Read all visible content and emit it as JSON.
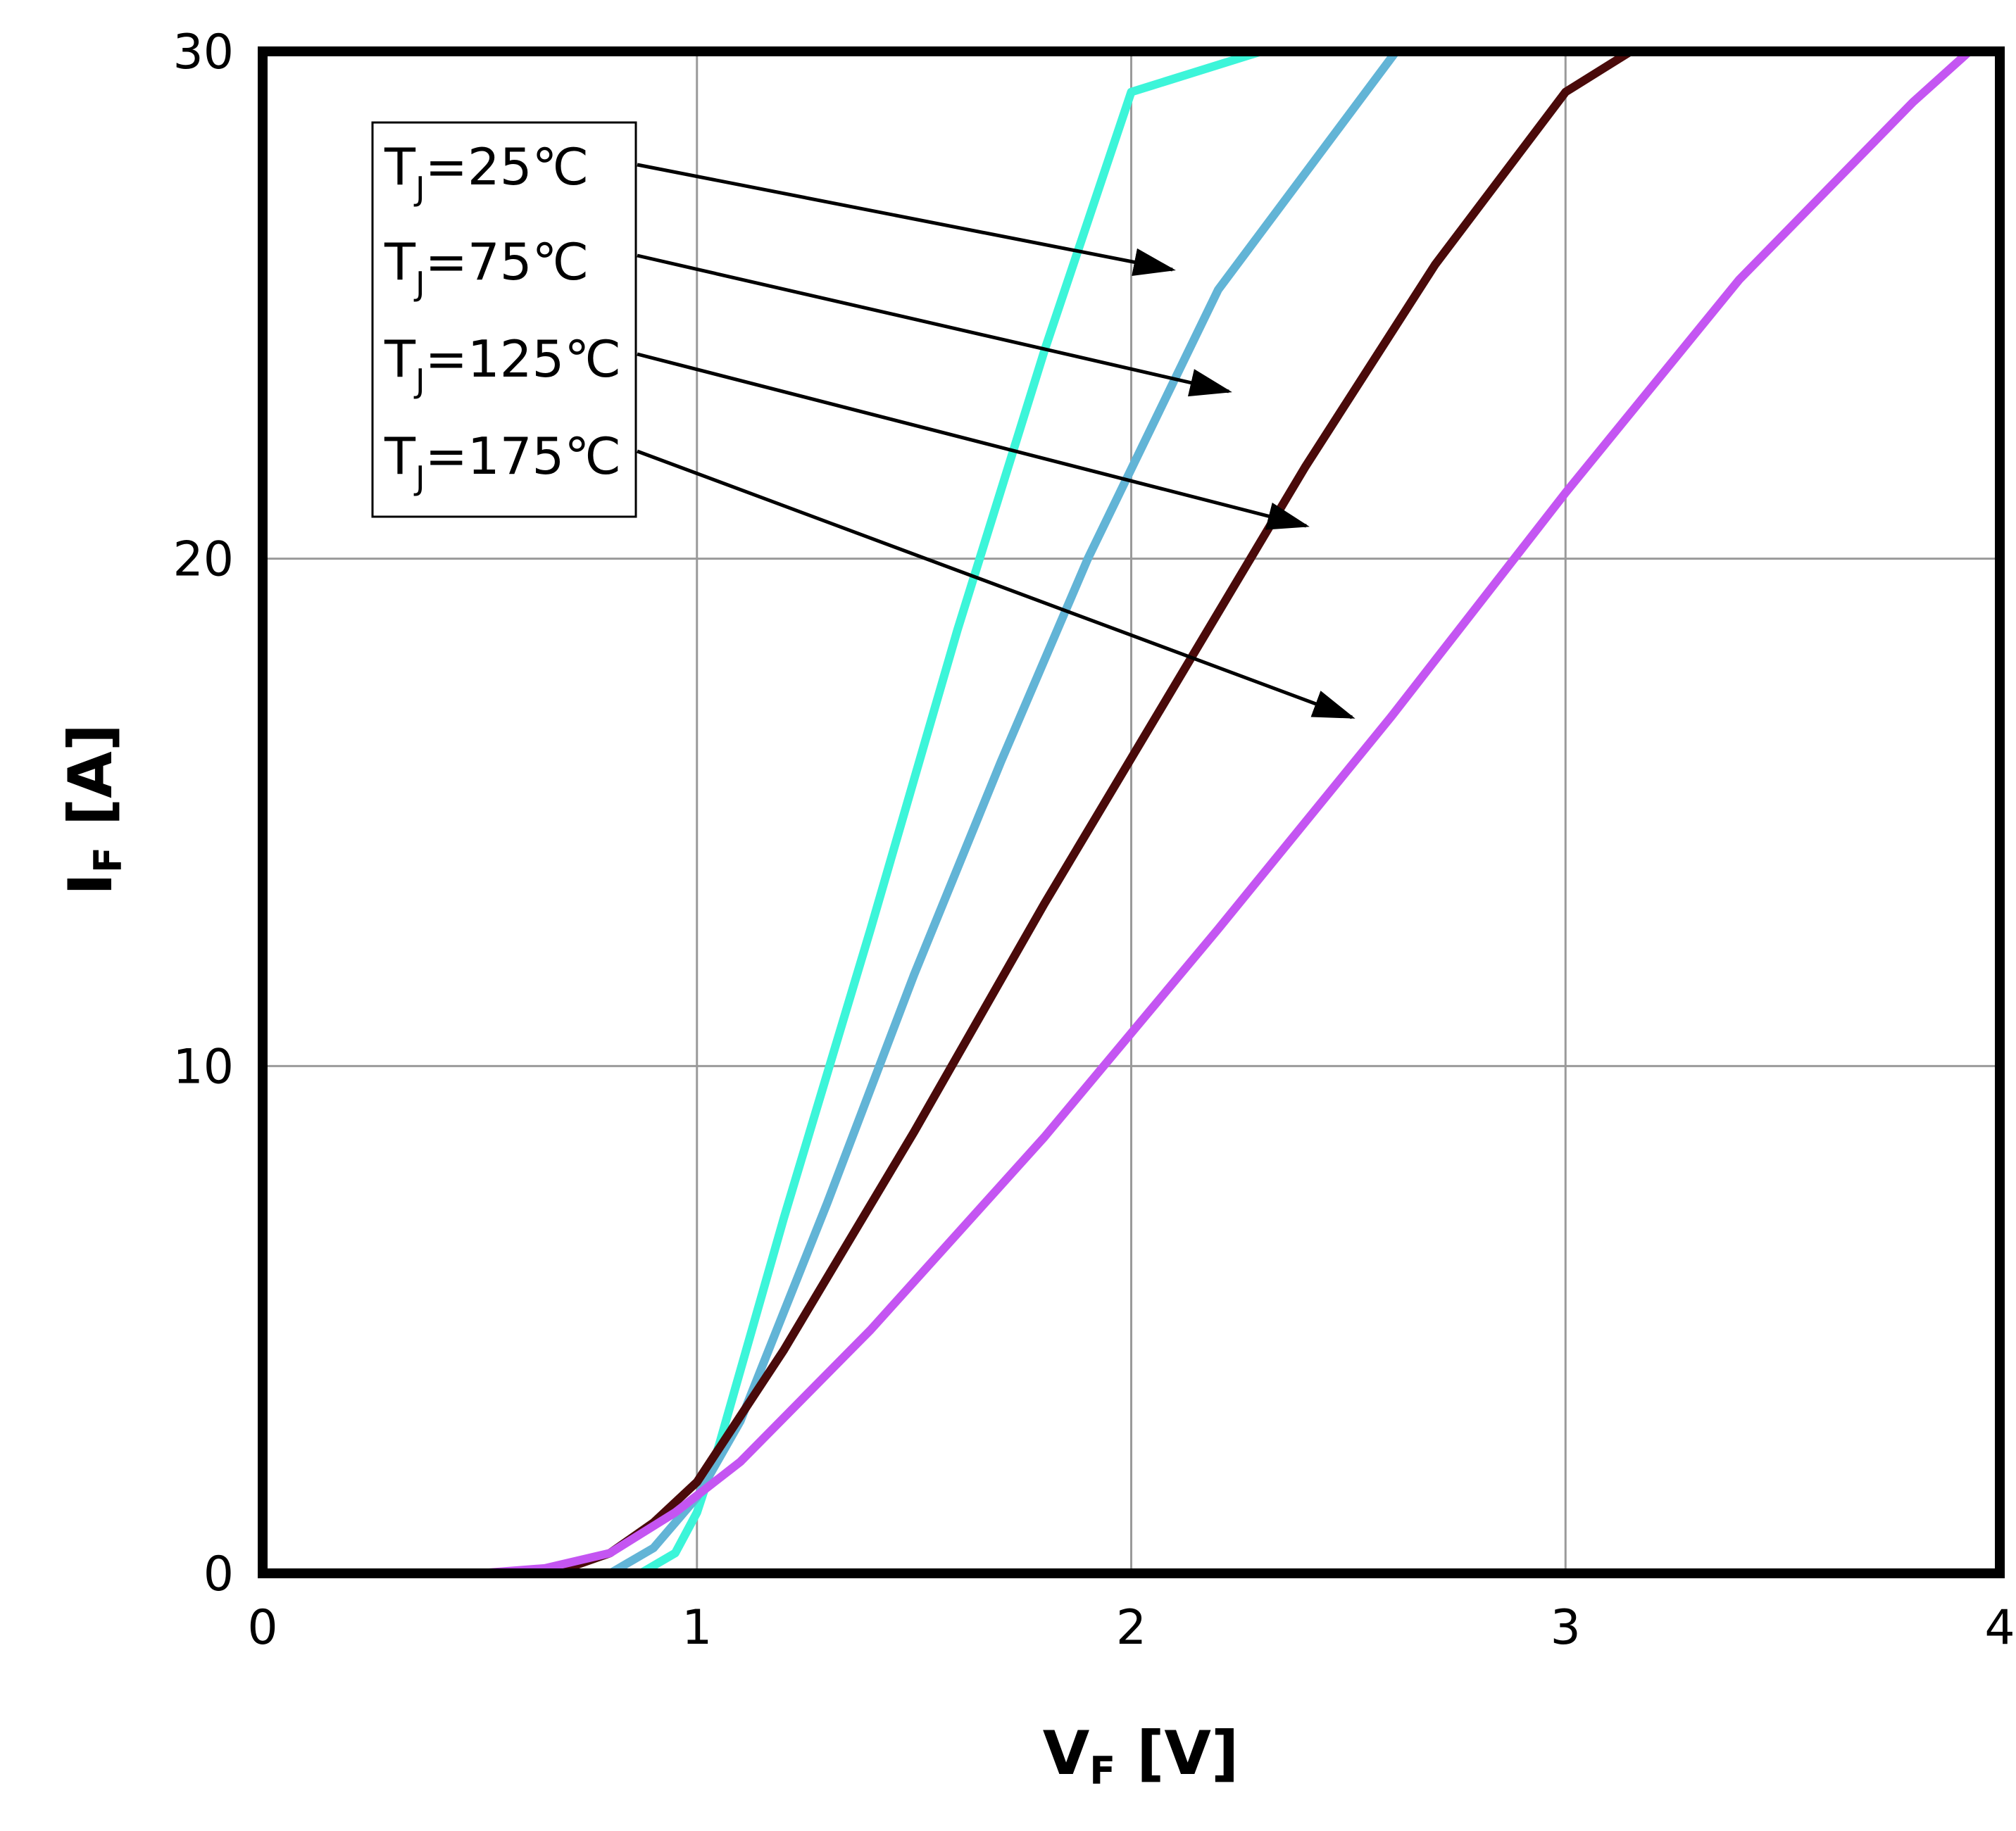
{
  "chart_data": {
    "type": "line",
    "xlabel": {
      "main": "V",
      "sub": "F",
      "unit": " [V]"
    },
    "ylabel": {
      "main": "I",
      "sub": "F",
      "unit": " [A]"
    },
    "xlim": [
      0,
      4
    ],
    "ylim": [
      0,
      30
    ],
    "x_ticks": [
      "0",
      "1",
      "2",
      "3",
      "4"
    ],
    "y_ticks": [
      "0",
      "10",
      "20",
      "30"
    ],
    "grid": true,
    "legend_placement": "top-left",
    "series": [
      {
        "name": "T_J=25℃",
        "label_main": "T",
        "label_sub": "J",
        "label_rest": "=25℃",
        "color": "#3cf5d9",
        "points": [
          [
            0.87,
            0
          ],
          [
            0.95,
            0.4
          ],
          [
            1.0,
            1.2
          ],
          [
            1.05,
            2.5
          ],
          [
            1.2,
            7.0
          ],
          [
            1.4,
            12.7
          ],
          [
            1.6,
            18.6
          ],
          [
            1.8,
            24.1
          ],
          [
            2.0,
            29.2
          ],
          [
            2.3,
            30.0
          ]
        ]
      },
      {
        "name": "T_J=75℃",
        "label_main": "T",
        "label_sub": "J",
        "label_rest": "=75℃",
        "color": "#62b4d6",
        "points": [
          [
            0.8,
            0
          ],
          [
            0.9,
            0.5
          ],
          [
            1.0,
            1.5
          ],
          [
            1.1,
            3.0
          ],
          [
            1.3,
            7.3
          ],
          [
            1.5,
            11.8
          ],
          [
            1.7,
            16.0
          ],
          [
            1.9,
            20.0
          ],
          [
            2.2,
            25.3
          ],
          [
            2.61,
            30.0
          ]
        ]
      },
      {
        "name": "T_J=125℃",
        "label_main": "T",
        "label_sub": "J",
        "label_rest": "=125℃",
        "color": "#4a0a0a",
        "points": [
          [
            0.5,
            0
          ],
          [
            0.7,
            0.1
          ],
          [
            0.8,
            0.4
          ],
          [
            0.9,
            1.0
          ],
          [
            1.0,
            1.8
          ],
          [
            1.2,
            4.4
          ],
          [
            1.5,
            8.7
          ],
          [
            1.8,
            13.2
          ],
          [
            2.1,
            17.5
          ],
          [
            2.4,
            21.8
          ],
          [
            2.7,
            25.8
          ],
          [
            3.0,
            29.2
          ],
          [
            3.15,
            30.0
          ]
        ]
      },
      {
        "name": "T_J=175℃",
        "label_main": "T",
        "label_sub": "J",
        "label_rest": "=175℃",
        "color": "#c455f2",
        "points": [
          [
            0.5,
            0
          ],
          [
            0.65,
            0.1
          ],
          [
            0.8,
            0.4
          ],
          [
            0.95,
            1.2
          ],
          [
            1.1,
            2.2
          ],
          [
            1.4,
            4.8
          ],
          [
            1.8,
            8.6
          ],
          [
            2.2,
            12.7
          ],
          [
            2.6,
            16.9
          ],
          [
            3.0,
            21.3
          ],
          [
            3.4,
            25.5
          ],
          [
            3.8,
            29.0
          ],
          [
            3.93,
            30.0
          ]
        ]
      }
    ]
  }
}
